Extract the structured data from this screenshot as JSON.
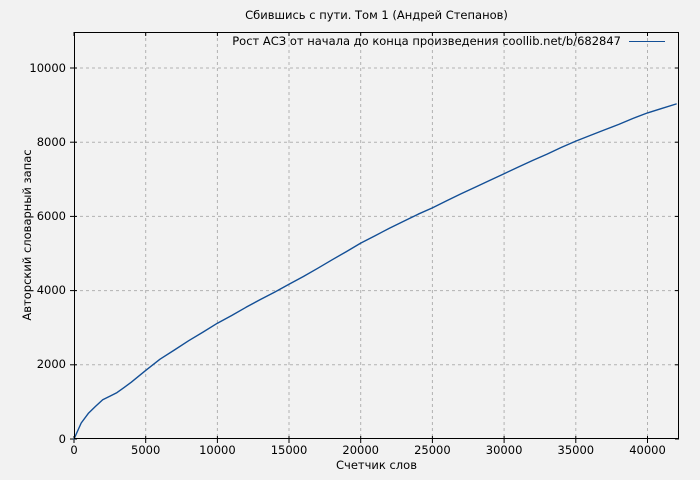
{
  "figure": {
    "background": "#f2f2f2",
    "border_color": "#000000"
  },
  "chart_data": {
    "type": "line",
    "title": "Сбившись с пути. Том 1 (Андрей Степанов)",
    "xlabel": "Счетчик слов",
    "ylabel": "Авторский словарный запас",
    "legend": [
      {
        "label": "Рост АСЗ от начала до конца произведения coollib.net/b/682847",
        "color": "#134f96"
      }
    ],
    "legend_position": "top-right",
    "grid": true,
    "grid_style": "dashed",
    "grid_color": "#b2b2b2",
    "line_color": "#134f96",
    "xlim": [
      0,
      42200
    ],
    "ylim": [
      0,
      10970
    ],
    "xticks": [
      0,
      5000,
      10000,
      15000,
      20000,
      25000,
      30000,
      35000,
      40000
    ],
    "yticks": [
      0,
      2000,
      4000,
      6000,
      8000,
      10000
    ],
    "x": [
      0,
      500,
      1000,
      1500,
      2000,
      2500,
      3000,
      3500,
      4000,
      4500,
      5000,
      6000,
      7000,
      8000,
      9000,
      10000,
      11000,
      12000,
      13000,
      14000,
      15000,
      16000,
      17000,
      18000,
      19000,
      20000,
      21000,
      22000,
      23000,
      24000,
      25000,
      26000,
      27000,
      28000,
      29000,
      30000,
      31000,
      32000,
      33000,
      34000,
      35000,
      36000,
      37000,
      38000,
      39000,
      40000,
      41000,
      42000
    ],
    "y": [
      0,
      430,
      690,
      880,
      1060,
      1150,
      1250,
      1390,
      1530,
      1690,
      1850,
      2150,
      2400,
      2650,
      2880,
      3120,
      3330,
      3550,
      3760,
      3960,
      4170,
      4380,
      4600,
      4830,
      5050,
      5280,
      5480,
      5680,
      5870,
      6060,
      6230,
      6420,
      6610,
      6790,
      6970,
      7150,
      7330,
      7510,
      7680,
      7860,
      8030,
      8180,
      8330,
      8480,
      8640,
      8790,
      8910,
      9030
    ]
  }
}
